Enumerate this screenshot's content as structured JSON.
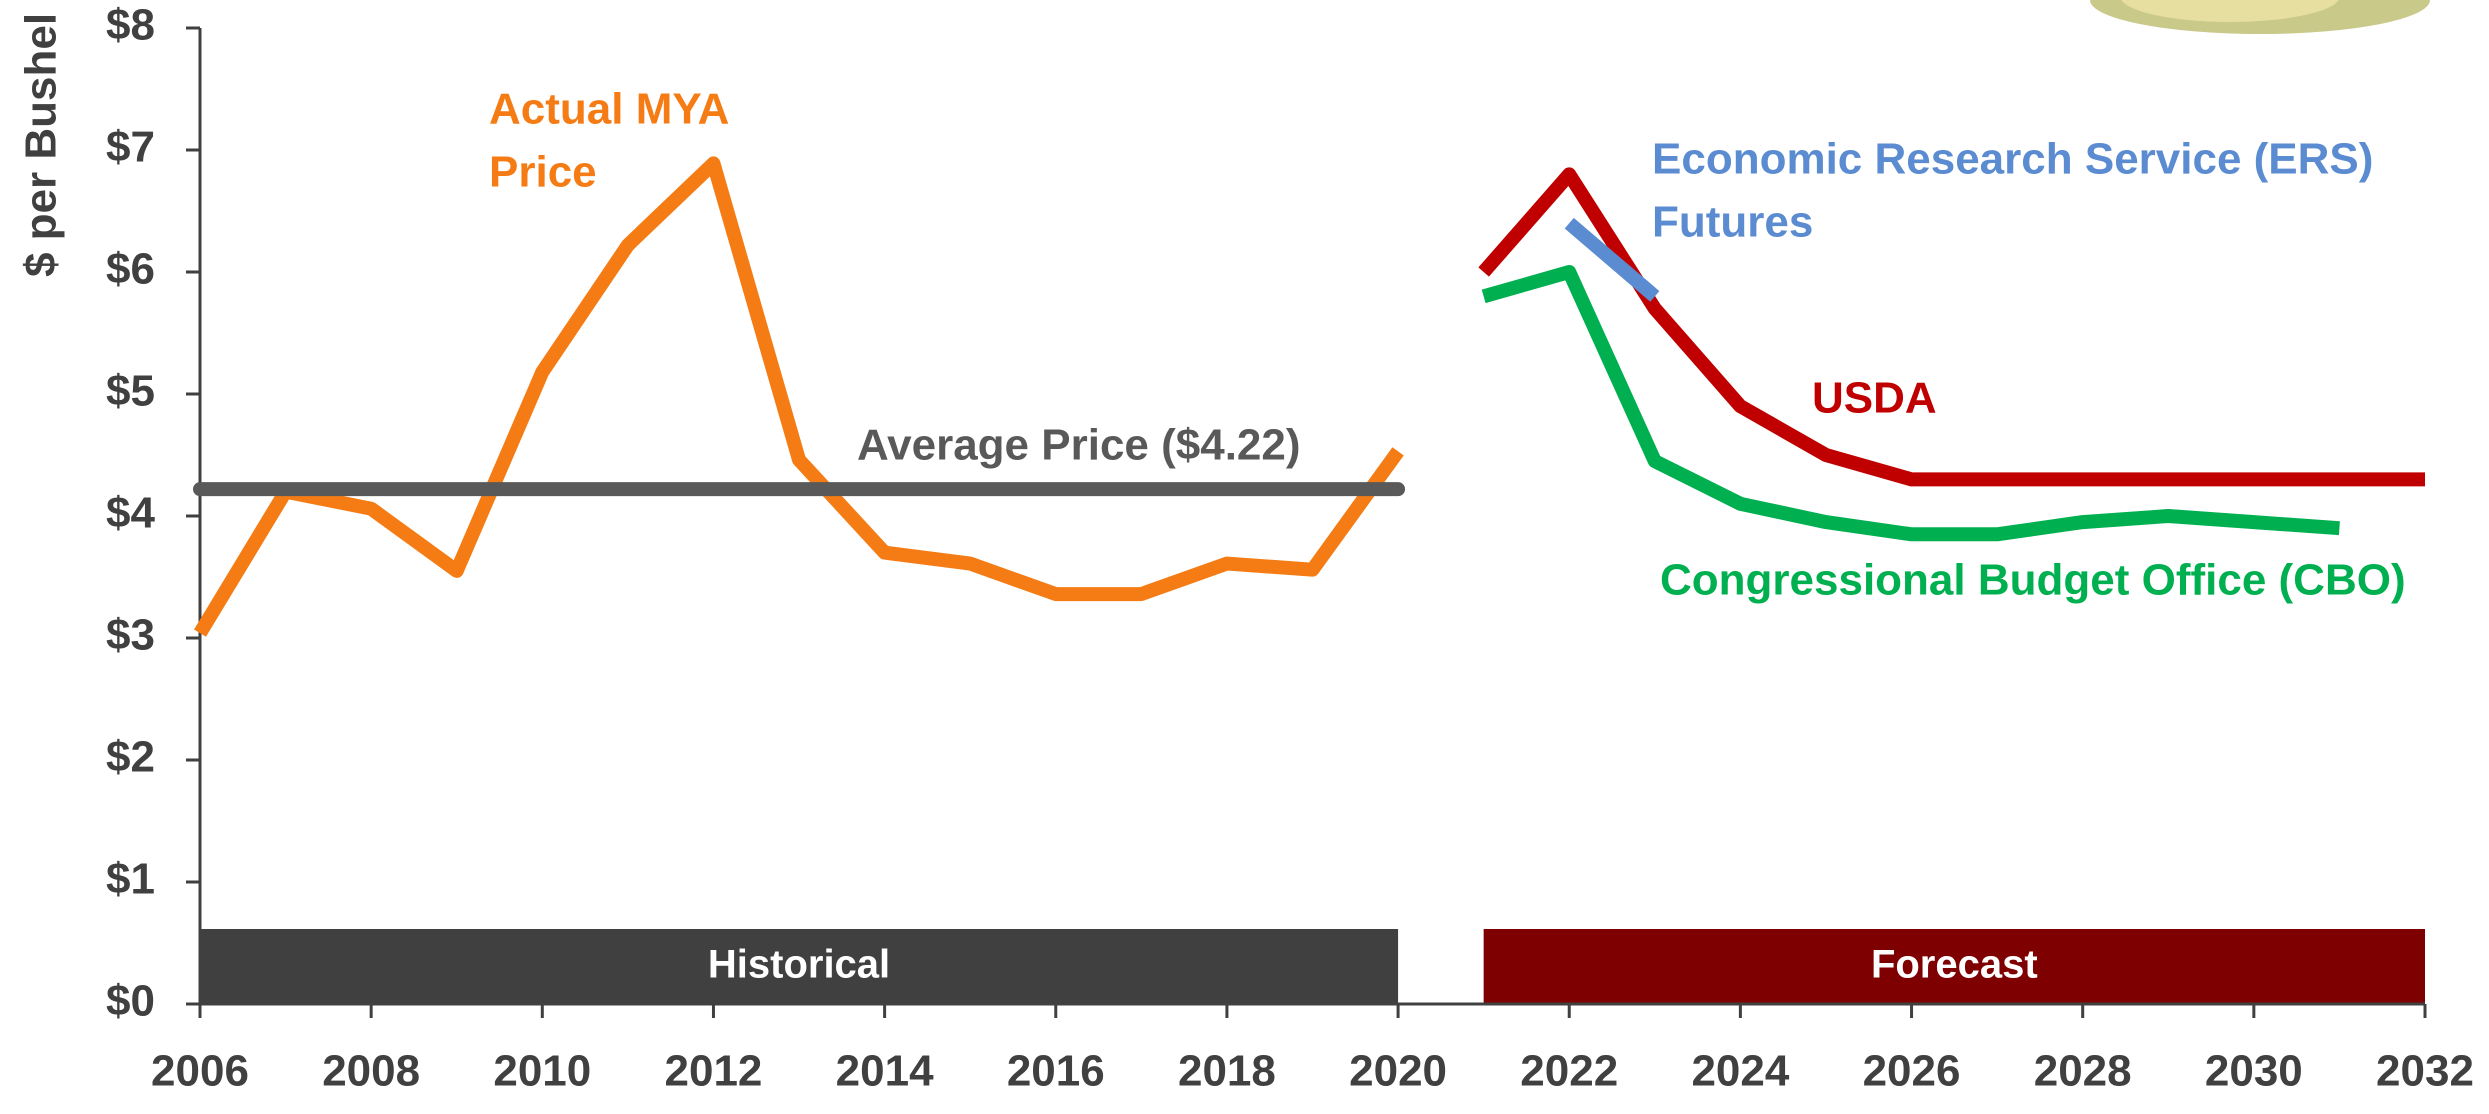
{
  "chart_data": {
    "type": "line",
    "ylabel": "$ per Bushel",
    "xlim": [
      2006,
      2032
    ],
    "xticks": [
      2006,
      2008,
      2010,
      2012,
      2014,
      2016,
      2018,
      2020,
      2022,
      2024,
      2026,
      2028,
      2030,
      2032
    ],
    "ylim": [
      0,
      8
    ],
    "yticks": [
      {
        "value": 0,
        "label": "$0"
      },
      {
        "value": 1,
        "label": "$1"
      },
      {
        "value": 2,
        "label": "$2"
      },
      {
        "value": 3,
        "label": "$3"
      },
      {
        "value": 4,
        "label": "$4"
      },
      {
        "value": 5,
        "label": "$5"
      },
      {
        "value": 6,
        "label": "$6"
      },
      {
        "value": 7,
        "label": "$7"
      },
      {
        "value": 8,
        "label": "$8"
      }
    ],
    "series": [
      {
        "label": [
          "Actual MYA",
          "Price"
        ],
        "color": "#f57c14",
        "x": [
          2006,
          2007,
          2008,
          2009,
          2010,
          2011,
          2012,
          2013,
          2014,
          2015,
          2016,
          2017,
          2018,
          2019,
          2020
        ],
        "values": [
          3.04,
          4.2,
          4.06,
          3.55,
          5.18,
          6.22,
          6.89,
          4.46,
          3.7,
          3.61,
          3.36,
          3.36,
          3.61,
          3.56,
          4.53
        ]
      },
      {
        "label": [
          "Average Price ($4.22)"
        ],
        "color": "#595959",
        "x": [
          2006,
          2020
        ],
        "values": [
          4.22,
          4.22
        ]
      },
      {
        "label": [
          "USDA"
        ],
        "color": "#c00000",
        "x": [
          2021,
          2022,
          2023,
          2024,
          2025,
          2026,
          2027,
          2028,
          2029,
          2030,
          2031,
          2032
        ],
        "values": [
          6.0,
          6.8,
          5.7,
          4.9,
          4.5,
          4.3,
          4.3,
          4.3,
          4.3,
          4.3,
          4.3,
          4.3
        ]
      },
      {
        "label": [
          "Economic Research Service (ERS)",
          "Futures"
        ],
        "color": "#5b8bd0",
        "x": [
          2022,
          2023
        ],
        "values": [
          6.4,
          5.8
        ]
      },
      {
        "label": [
          "Congressional Budget Office (CBO)"
        ],
        "color": "#00b050",
        "x": [
          2021,
          2022,
          2023,
          2024,
          2025,
          2026,
          2027,
          2028,
          2029,
          2030,
          2031
        ],
        "values": [
          5.8,
          6.0,
          4.45,
          4.1,
          3.95,
          3.85,
          3.85,
          3.95,
          4.0,
          3.95,
          3.9
        ]
      }
    ],
    "bands": [
      {
        "label": "Historical",
        "start": 2006,
        "end": 2020,
        "color": "#404040"
      },
      {
        "label": "Forecast",
        "start": 2021,
        "end": 2032,
        "color": "#7f0000"
      }
    ]
  }
}
